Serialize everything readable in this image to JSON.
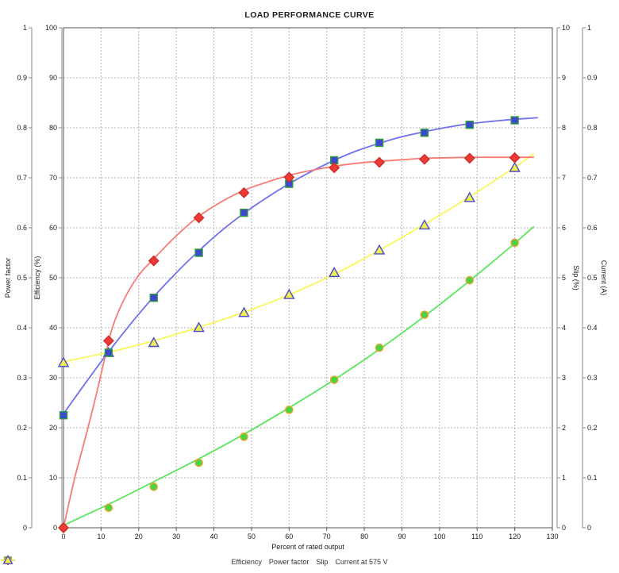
{
  "title": "LOAD PERFORMANCE CURVE",
  "chart_data": {
    "type": "line",
    "title": "LOAD PERFORMANCE CURVE",
    "xlabel": "Percent of rated output",
    "grid": true,
    "legend_position": "bottom",
    "axes": {
      "x": {
        "label": "Percent of rated output",
        "min": 0,
        "max": 130,
        "tick_step": 10
      },
      "left": [
        {
          "id": "power_factor",
          "label": "Power factor",
          "min": 0,
          "max": 1,
          "tick_step": 0.1
        },
        {
          "id": "efficiency",
          "label": "Efficiency (%)",
          "min": 0,
          "max": 100,
          "tick_step": 10
        }
      ],
      "right": [
        {
          "id": "slip",
          "label": "Slip (%)",
          "min": 0,
          "max": 10,
          "tick_step": 1
        },
        {
          "id": "current",
          "label": "Current (A)",
          "min": 0,
          "max": 1,
          "tick_step": 0.1
        }
      ]
    },
    "x": [
      0,
      12,
      24,
      36,
      48,
      60,
      72,
      84,
      96,
      108,
      120
    ],
    "series": [
      {
        "name": "Current at 575 V",
        "axis": "current",
        "marker": "triangle",
        "marker_fill": "#f2f04e",
        "marker_stroke": "#4a4ace",
        "line_color": "#f8f858",
        "values": [
          0.33,
          0.35,
          0.37,
          0.4,
          0.43,
          0.466,
          0.51,
          0.555,
          0.605,
          0.66,
          0.72
        ],
        "trend": [
          [
            0,
            0.332
          ],
          [
            12,
            0.351
          ],
          [
            24,
            0.374
          ],
          [
            36,
            0.401
          ],
          [
            48,
            0.431
          ],
          [
            60,
            0.466
          ],
          [
            72,
            0.507
          ],
          [
            84,
            0.555
          ],
          [
            96,
            0.607
          ],
          [
            108,
            0.662
          ],
          [
            120,
            0.721
          ],
          [
            125,
            0.748
          ]
        ]
      },
      {
        "name": "Slip",
        "axis": "slip",
        "marker": "circle",
        "marker_fill": "#45d545",
        "marker_stroke": "#eda32a",
        "line_color": "#5ce65c",
        "values": [
          0,
          0.4,
          0.82,
          1.3,
          1.82,
          2.36,
          2.96,
          3.6,
          4.26,
          4.95,
          5.7
        ],
        "trend": [
          [
            0,
            0.05
          ],
          [
            12,
            0.47
          ],
          [
            24,
            0.92
          ],
          [
            36,
            1.38
          ],
          [
            48,
            1.87
          ],
          [
            60,
            2.4
          ],
          [
            72,
            2.96
          ],
          [
            84,
            3.57
          ],
          [
            96,
            4.23
          ],
          [
            108,
            4.94
          ],
          [
            120,
            5.69
          ],
          [
            125,
            6.02
          ]
        ]
      },
      {
        "name": "Power factor",
        "axis": "power_factor",
        "marker": "square",
        "marker_fill": "#3f46d2",
        "marker_stroke": "#2f9e38",
        "line_color": "#6f70ee",
        "values": [
          0.225,
          0.35,
          0.46,
          0.55,
          0.63,
          0.688,
          0.735,
          0.77,
          0.79,
          0.806,
          0.815
        ],
        "trend": [
          [
            0,
            0.228
          ],
          [
            6,
            0.291
          ],
          [
            12,
            0.352
          ],
          [
            18,
            0.409
          ],
          [
            24,
            0.462
          ],
          [
            30,
            0.51
          ],
          [
            36,
            0.554
          ],
          [
            42,
            0.594
          ],
          [
            48,
            0.629
          ],
          [
            54,
            0.66
          ],
          [
            60,
            0.688
          ],
          [
            66,
            0.713
          ],
          [
            72,
            0.735
          ],
          [
            78,
            0.754
          ],
          [
            84,
            0.769
          ],
          [
            90,
            0.782
          ],
          [
            96,
            0.792
          ],
          [
            102,
            0.801
          ],
          [
            108,
            0.808
          ],
          [
            114,
            0.813
          ],
          [
            120,
            0.817
          ],
          [
            126,
            0.82
          ]
        ]
      },
      {
        "name": "Efficiency",
        "axis": "efficiency",
        "marker": "diamond",
        "marker_fill": "#ec3b36",
        "marker_stroke": "#cf2d29",
        "line_color": "#f97c74",
        "values": [
          0,
          37.4,
          53.4,
          62,
          67,
          70.1,
          72,
          73.1,
          73.7,
          73.9,
          74
        ],
        "trend": [
          [
            0,
            0
          ],
          [
            3,
            10
          ],
          [
            6,
            18.5
          ],
          [
            9,
            27.5
          ],
          [
            11,
            34
          ],
          [
            13,
            40
          ],
          [
            16,
            45.5
          ],
          [
            20,
            50.5
          ],
          [
            24,
            53.8
          ],
          [
            30,
            58.4
          ],
          [
            36,
            62.3
          ],
          [
            42,
            65.2
          ],
          [
            48,
            67.5
          ],
          [
            54,
            69.1
          ],
          [
            60,
            70.5
          ],
          [
            66,
            71.5
          ],
          [
            72,
            72.3
          ],
          [
            78,
            72.9
          ],
          [
            84,
            73.3
          ],
          [
            90,
            73.6
          ],
          [
            96,
            73.9
          ],
          [
            102,
            74
          ],
          [
            108,
            74.1
          ],
          [
            114,
            74.1
          ],
          [
            120,
            74.1
          ],
          [
            125,
            74.1
          ]
        ]
      }
    ],
    "legend_order": [
      "Efficiency",
      "Power factor",
      "Slip",
      "Current at 575 V"
    ]
  }
}
